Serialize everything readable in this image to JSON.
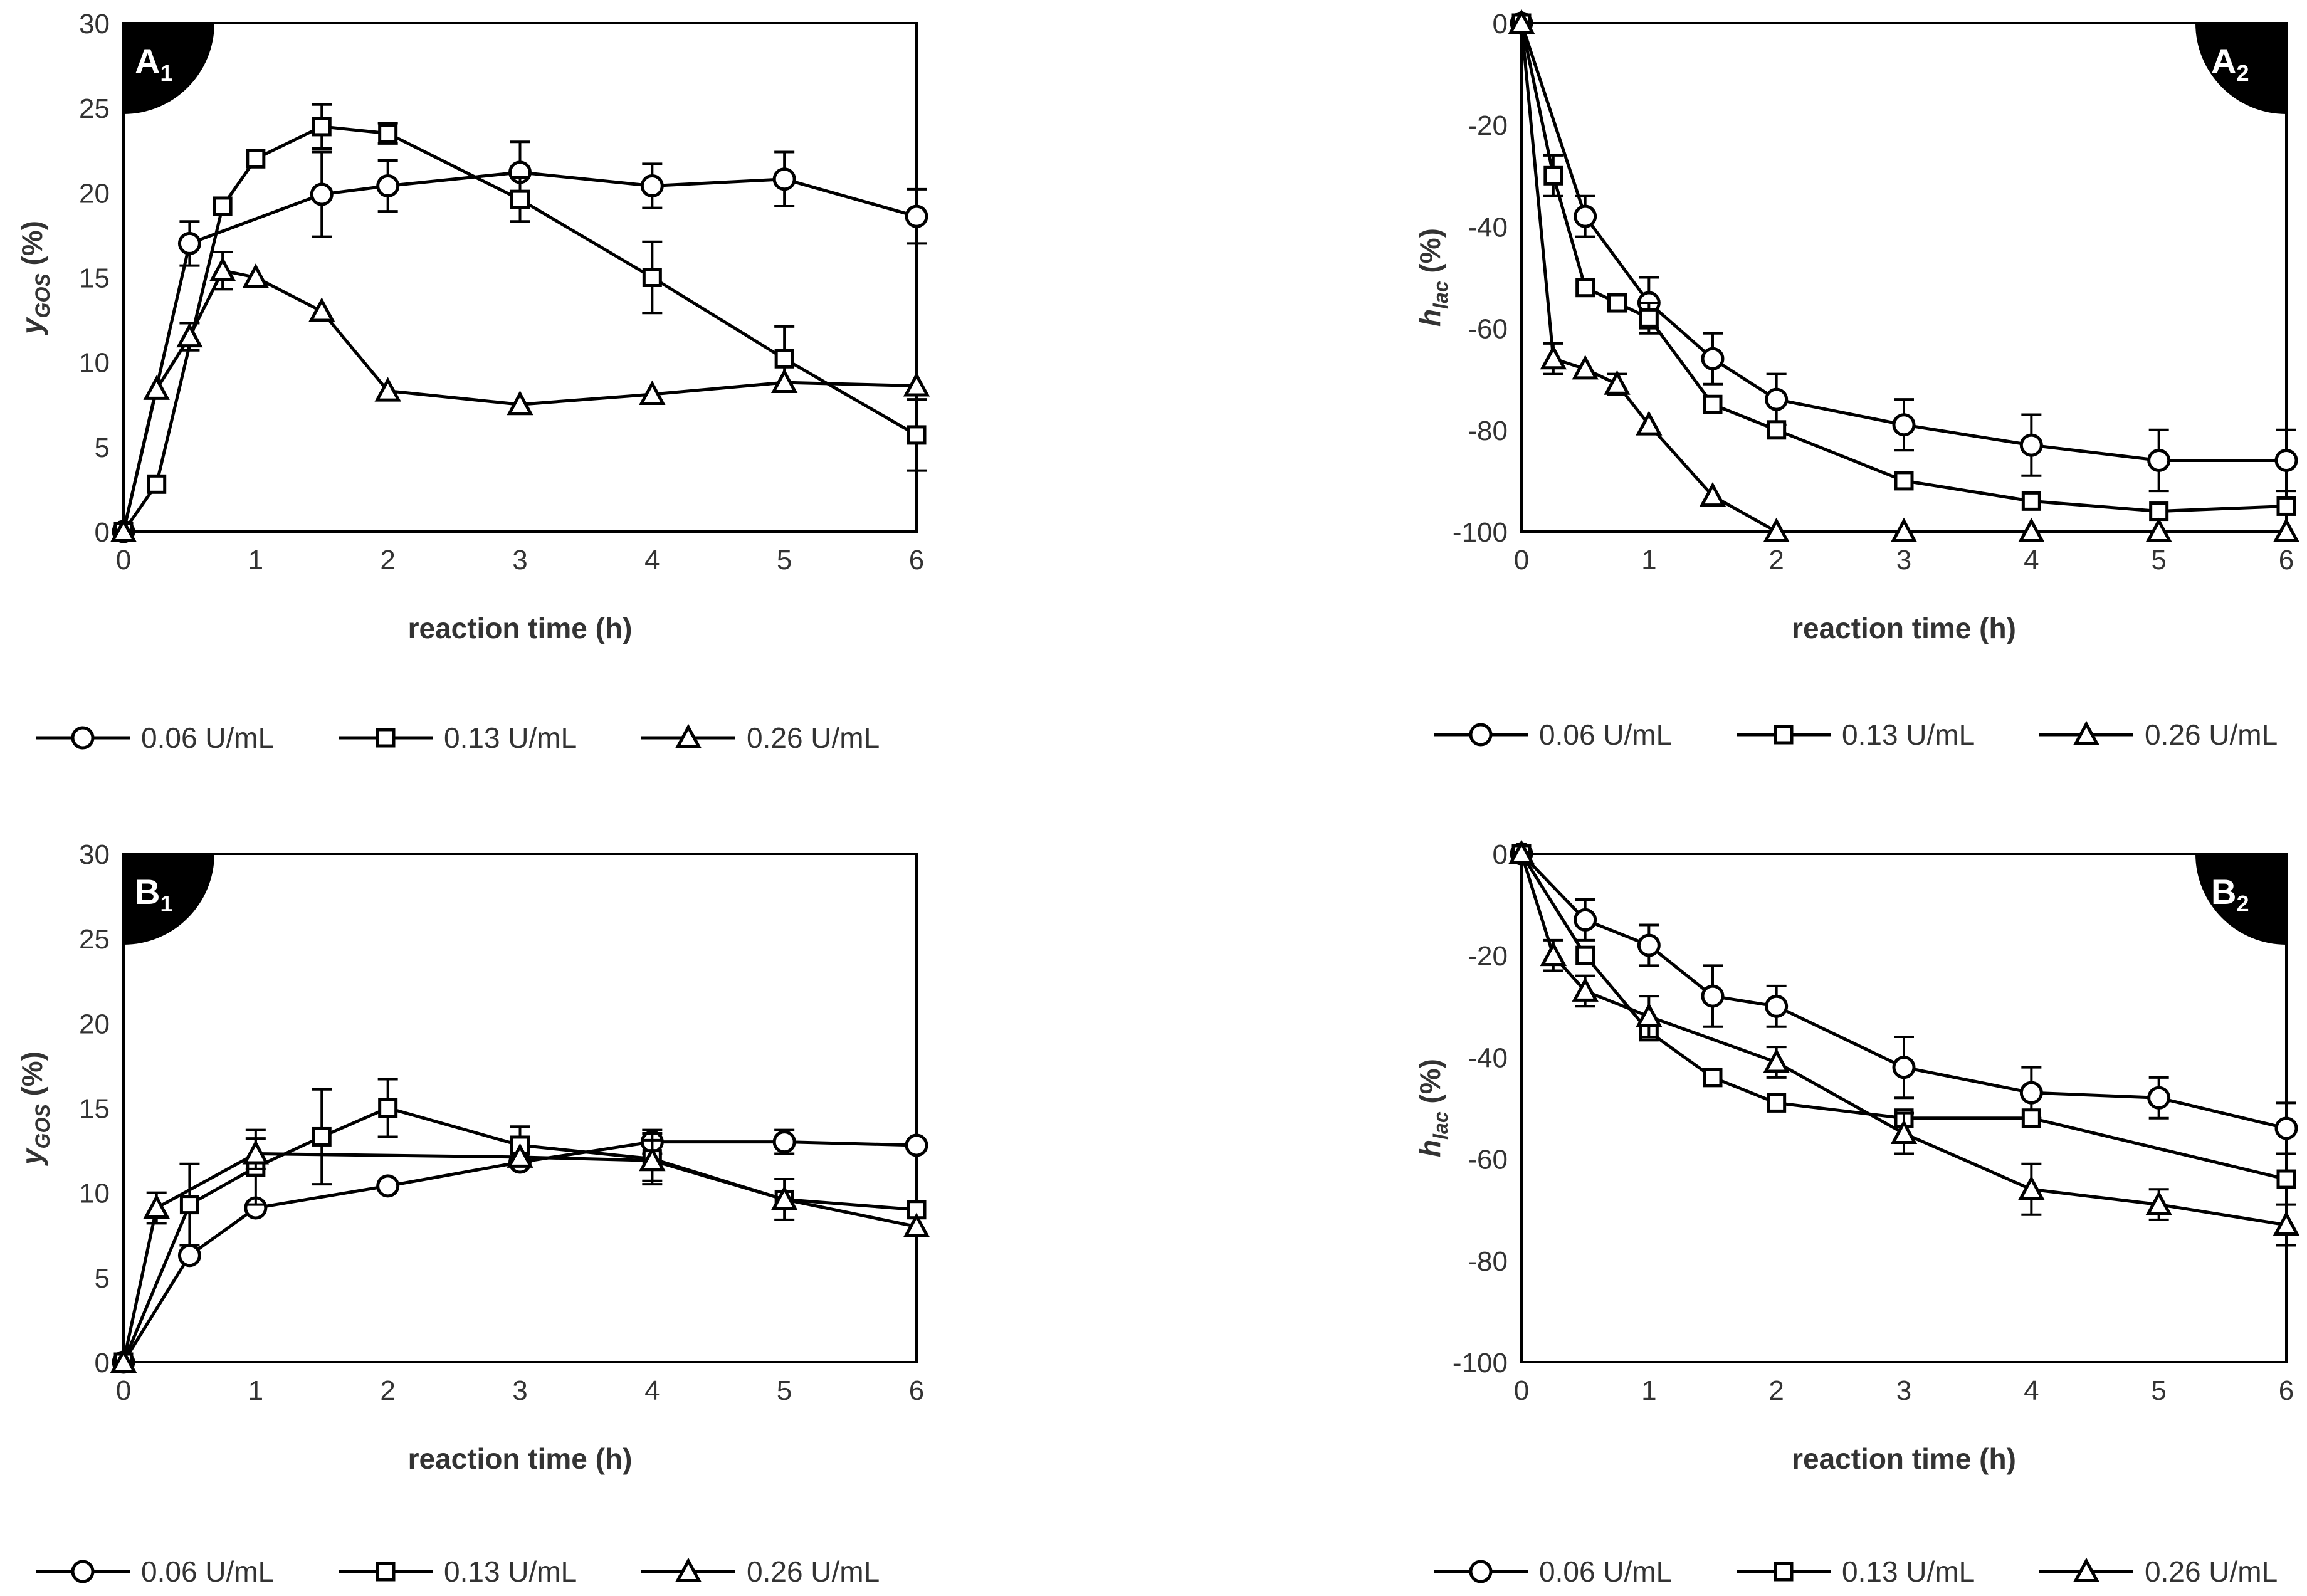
{
  "chart_data": [
    {
      "id": "A1",
      "type": "line",
      "panel_label": "A",
      "panel_sub": "1",
      "xlabel": "reaction time (h)",
      "ylabel_main": "y",
      "ylabel_sub": "GOS",
      "ylabel_unit": " (%)",
      "xlim": [
        0,
        6
      ],
      "ylim": [
        0,
        30
      ],
      "xticks": [
        0,
        1,
        2,
        3,
        4,
        5,
        6
      ],
      "yticks": [
        0,
        5,
        10,
        15,
        20,
        25,
        30
      ],
      "legend": [
        "0.06 U/mL",
        "0.13 U/mL",
        "0.26 U/mL"
      ],
      "series": [
        {
          "name": "0.06 U/mL",
          "marker": "circle",
          "x": [
            0,
            0.5,
            1.5,
            2,
            3,
            4,
            5,
            6
          ],
          "y": [
            0,
            17.0,
            19.9,
            20.4,
            21.2,
            20.4,
            20.8,
            18.6
          ],
          "err": [
            0,
            1.3,
            2.5,
            1.5,
            1.8,
            1.3,
            1.6,
            1.6
          ]
        },
        {
          "name": "0.13 U/mL",
          "marker": "square",
          "x": [
            0,
            0.25,
            0.75,
            1,
            1.5,
            2,
            3,
            4,
            5,
            6
          ],
          "y": [
            0,
            2.8,
            19.2,
            22.0,
            23.9,
            23.5,
            19.6,
            15.0,
            10.2,
            5.7
          ],
          "err": [
            0,
            0,
            0,
            0,
            1.3,
            0.6,
            1.3,
            2.1,
            1.9,
            2.1
          ]
        },
        {
          "name": "0.26 U/mL",
          "marker": "triangle",
          "x": [
            0,
            0.25,
            0.5,
            0.75,
            1,
            1.5,
            2,
            3,
            4,
            5,
            6
          ],
          "y": [
            0,
            8.4,
            11.5,
            15.4,
            15.0,
            13.0,
            8.3,
            7.5,
            8.1,
            8.8,
            8.6
          ],
          "err": [
            0,
            0,
            0.8,
            1.1,
            0,
            0,
            0,
            0,
            0,
            0,
            0
          ]
        }
      ]
    },
    {
      "id": "A2",
      "type": "line",
      "panel_label": "A",
      "panel_sub": "2",
      "xlabel": "reaction time (h)",
      "ylabel_main": "h",
      "ylabel_sub": "lac",
      "ylabel_unit": " (%)",
      "xlim": [
        0,
        6
      ],
      "ylim": [
        -100,
        0
      ],
      "xticks": [
        0,
        1,
        2,
        3,
        4,
        5,
        6
      ],
      "yticks": [
        0,
        -20,
        -40,
        -60,
        -80,
        -100
      ],
      "legend": [
        "0.06 U/mL",
        "0.13 U/mL",
        "0.26 U/mL"
      ],
      "series": [
        {
          "name": "0.06 U/mL",
          "marker": "circle",
          "x": [
            0,
            0.5,
            1,
            1.5,
            2,
            3,
            4,
            5,
            6
          ],
          "y": [
            0,
            -38,
            -55,
            -66,
            -74,
            -79,
            -83,
            -86,
            -86
          ],
          "err": [
            0,
            4,
            5,
            5,
            5,
            5,
            6,
            6,
            6
          ]
        },
        {
          "name": "0.13 U/mL",
          "marker": "square",
          "x": [
            0,
            0.25,
            0.5,
            0.75,
            1,
            1.5,
            2,
            3,
            4,
            5,
            6
          ],
          "y": [
            0,
            -30,
            -52,
            -55,
            -58,
            -75,
            -80,
            -90,
            -94,
            -96,
            -95
          ],
          "err": [
            0,
            4,
            0,
            0,
            3,
            0,
            0,
            0,
            0,
            0,
            0
          ]
        },
        {
          "name": "0.26 U/mL",
          "marker": "triangle",
          "x": [
            0,
            0.25,
            0.5,
            0.75,
            1,
            1.5,
            2,
            3,
            4,
            5,
            6
          ],
          "y": [
            0,
            -66,
            -68,
            -71,
            -79,
            -93,
            -100,
            -100,
            -100,
            -100,
            -100
          ],
          "err": [
            0,
            3,
            0,
            2,
            0,
            0,
            0,
            0,
            0,
            0,
            0
          ]
        }
      ]
    },
    {
      "id": "B1",
      "type": "line",
      "panel_label": "B",
      "panel_sub": "1",
      "xlabel": "reaction time (h)",
      "ylabel_main": "y",
      "ylabel_sub": "GOS",
      "ylabel_unit": " (%)",
      "xlim": [
        0,
        6
      ],
      "ylim": [
        0,
        30
      ],
      "xticks": [
        0,
        1,
        2,
        3,
        4,
        5,
        6
      ],
      "yticks": [
        0,
        5,
        10,
        15,
        20,
        25,
        30
      ],
      "legend": [
        "0.06 U/mL",
        "0.13 U/mL",
        "0.26 U/mL"
      ],
      "series": [
        {
          "name": "0.06 U/mL",
          "marker": "circle",
          "x": [
            0,
            0.5,
            1,
            2,
            3,
            4,
            5,
            6
          ],
          "y": [
            0,
            6.3,
            9.1,
            10.4,
            11.8,
            13.0,
            13.0,
            12.8
          ],
          "err": [
            0,
            0,
            0,
            0,
            0,
            0.7,
            0.7,
            0
          ]
        },
        {
          "name": "0.13 U/mL",
          "marker": "square",
          "x": [
            0,
            0.5,
            1,
            1.5,
            2,
            3,
            4,
            5,
            6
          ],
          "y": [
            0,
            9.3,
            11.5,
            13.3,
            15.0,
            12.8,
            12.0,
            9.6,
            9.0
          ],
          "err": [
            0,
            2.4,
            2.2,
            2.8,
            1.7,
            1.1,
            1.5,
            1.2,
            0
          ]
        },
        {
          "name": "0.26 U/mL",
          "marker": "triangle",
          "x": [
            0,
            0.25,
            1,
            3,
            4,
            5,
            6
          ],
          "y": [
            0,
            9.1,
            12.3,
            12.1,
            11.9,
            9.6,
            8.0
          ],
          "err": [
            0,
            0.9,
            0.9,
            0,
            1.2,
            0,
            0
          ]
        }
      ]
    },
    {
      "id": "B2",
      "type": "line",
      "panel_label": "B",
      "panel_sub": "2",
      "xlabel": "reaction time (h)",
      "ylabel_main": "h",
      "ylabel_sub": "lac",
      "ylabel_unit": " (%)",
      "xlim": [
        0,
        6
      ],
      "ylim": [
        -100,
        0
      ],
      "xticks": [
        0,
        1,
        2,
        3,
        4,
        5,
        6
      ],
      "yticks": [
        0,
        -20,
        -40,
        -60,
        -80,
        -100
      ],
      "legend": [
        "0.06 U/mL",
        "0.13 U/mL",
        "0.26 U/mL"
      ],
      "series": [
        {
          "name": "0.06 U/mL",
          "marker": "circle",
          "x": [
            0,
            0.5,
            1,
            1.5,
            2,
            3,
            4,
            5,
            6
          ],
          "y": [
            0,
            -13,
            -18,
            -28,
            -30,
            -42,
            -47,
            -48,
            -54
          ],
          "err": [
            0,
            4,
            4,
            6,
            4,
            6,
            5,
            4,
            5
          ]
        },
        {
          "name": "0.13 U/mL",
          "marker": "square",
          "x": [
            0,
            0.5,
            1,
            1.5,
            2,
            3,
            4,
            6
          ],
          "y": [
            0,
            -20,
            -35,
            -44,
            -49,
            -52,
            -52,
            -64
          ],
          "err": [
            0,
            0,
            0,
            0,
            0,
            0,
            0,
            0
          ]
        },
        {
          "name": "0.26 U/mL",
          "marker": "triangle",
          "x": [
            0,
            0.25,
            0.5,
            1,
            2,
            3,
            4,
            5,
            6
          ],
          "y": [
            0,
            -20,
            -27,
            -32,
            -41,
            -55,
            -66,
            -69,
            -73
          ],
          "err": [
            0,
            3,
            3,
            4,
            3,
            4,
            5,
            3,
            4
          ]
        }
      ]
    }
  ]
}
